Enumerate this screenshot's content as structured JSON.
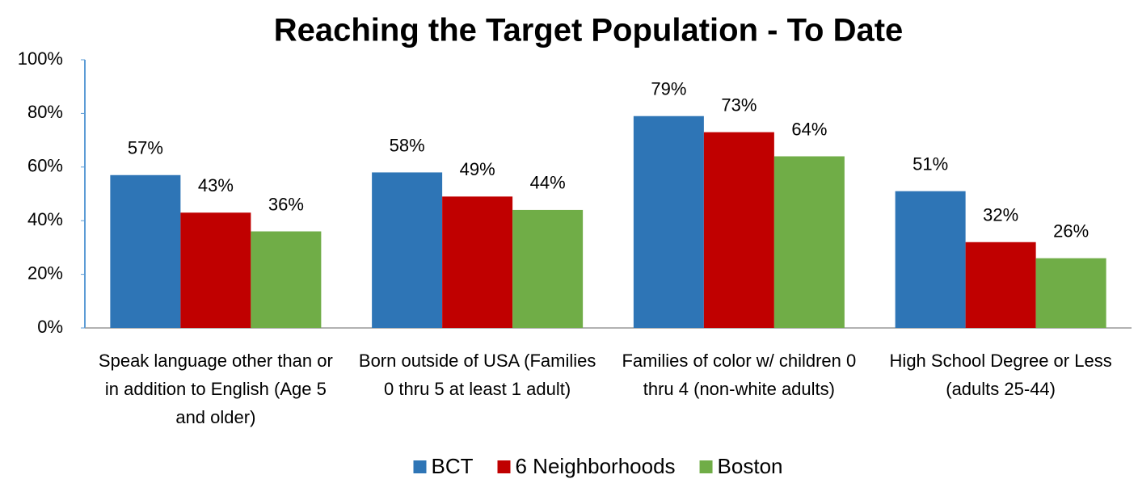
{
  "chart_data": {
    "type": "bar",
    "title": "Reaching the Target Population - To Date",
    "categories": [
      "Speak language other than or in addition to English (Age 5 and older)",
      "Born outside of USA (Families 0 thru 5 at least 1 adult)",
      "Families of color w/ children 0 thru 4 (non-white adults)",
      "High School Degree or Less (adults 25-44)"
    ],
    "series": [
      {
        "name": "BCT",
        "color": "#2e75b6",
        "values": [
          57,
          58,
          79,
          51
        ],
        "value_labels": [
          "57%",
          "58%",
          "79%",
          "51%"
        ]
      },
      {
        "name": "6 Neighborhoods",
        "color": "#c00000",
        "values": [
          43,
          49,
          73,
          32
        ],
        "value_labels": [
          "43%",
          "49%",
          "73%",
          "32%"
        ]
      },
      {
        "name": "Boston",
        "color": "#70ad47",
        "values": [
          36,
          44,
          64,
          26
        ],
        "value_labels": [
          "36%",
          "44%",
          "64%",
          "26%"
        ]
      }
    ],
    "ylim": [
      0,
      100
    ],
    "yticks": [
      {
        "value": 0,
        "label": "0%"
      },
      {
        "value": 20,
        "label": "20%"
      },
      {
        "value": 40,
        "label": "40%"
      },
      {
        "value": 60,
        "label": "60%"
      },
      {
        "value": 80,
        "label": "80%"
      },
      {
        "value": 100,
        "label": "100%"
      }
    ],
    "legend": "bottom"
  }
}
